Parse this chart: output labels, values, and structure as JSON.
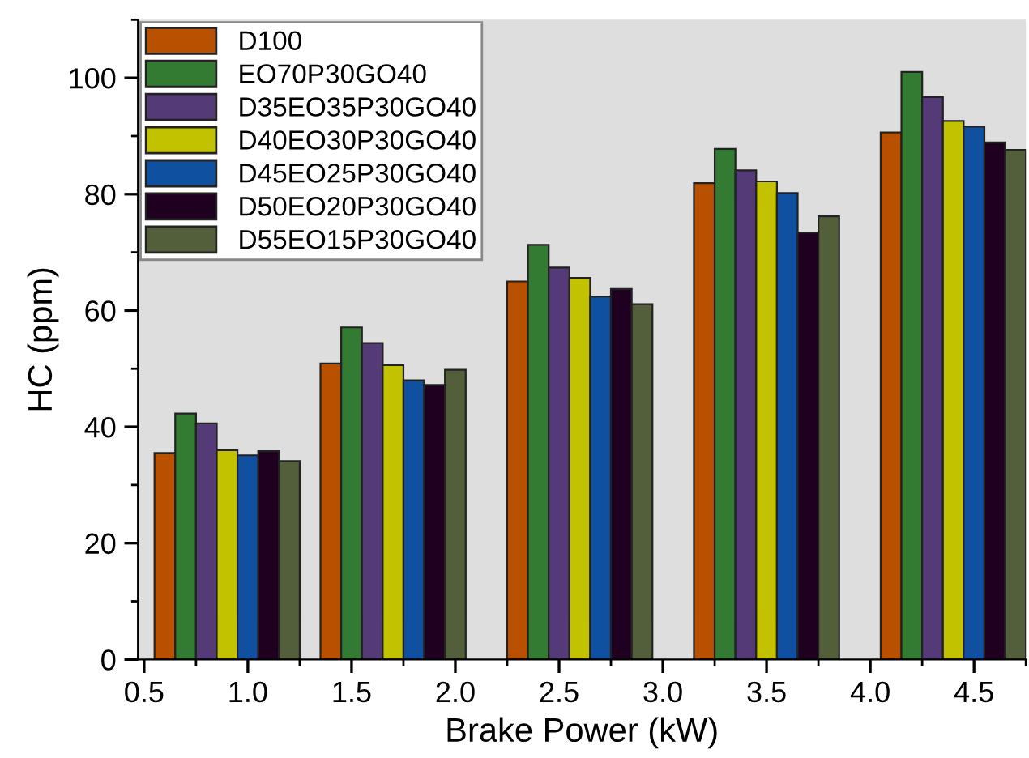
{
  "chart_data": {
    "type": "bar",
    "xlabel": "Brake Power (kW)",
    "ylabel": "HC (ppm)",
    "x": [
      0.9,
      1.7,
      2.6,
      3.5,
      4.4
    ],
    "series": [
      {
        "name": "D100",
        "color": "#b85000",
        "values": [
          35.5,
          50.9,
          65.0,
          81.9,
          90.6
        ]
      },
      {
        "name": "EO70P30GO40",
        "color": "#337a33",
        "values": [
          42.3,
          57.1,
          71.3,
          87.8,
          101.0
        ]
      },
      {
        "name": "D35EO35P30GO40",
        "color": "#553a78",
        "values": [
          40.6,
          54.4,
          67.4,
          84.1,
          96.7
        ]
      },
      {
        "name": "D40EO30P30GO40",
        "color": "#c2c200",
        "values": [
          36.0,
          50.6,
          65.6,
          82.2,
          92.6
        ]
      },
      {
        "name": "D45EO25P30GO40",
        "color": "#1050a0",
        "values": [
          35.1,
          48.0,
          62.4,
          80.2,
          91.6
        ]
      },
      {
        "name": "D50EO20P30GO40",
        "color": "#200020",
        "values": [
          35.8,
          47.2,
          63.7,
          73.4,
          88.9
        ]
      },
      {
        "name": "D55EO15P30GO40",
        "color": "#535e3b",
        "values": [
          34.1,
          49.8,
          61.1,
          76.2,
          87.6
        ]
      }
    ],
    "xlim": [
      0.47,
      4.74
    ],
    "xticks": [
      {
        "value": 0.5,
        "label": "0.5"
      },
      {
        "value": 1.0,
        "label": "1.0"
      },
      {
        "value": 1.5,
        "label": "1.5"
      },
      {
        "value": 2.0,
        "label": "2.0"
      },
      {
        "value": 2.5,
        "label": "2.5"
      },
      {
        "value": 3.0,
        "label": "3.0"
      },
      {
        "value": 3.5,
        "label": "3.5"
      },
      {
        "value": 4.0,
        "label": "4.0"
      },
      {
        "value": 4.5,
        "label": "4.5"
      }
    ],
    "ylim": [
      0,
      110
    ],
    "yticks": [
      0,
      20,
      40,
      60,
      80,
      100
    ],
    "grid": false,
    "legend": "top left"
  }
}
